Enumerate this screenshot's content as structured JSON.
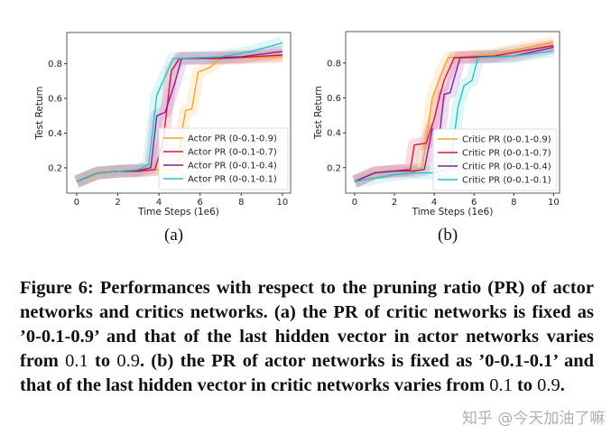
{
  "chart_data": [
    {
      "type": "line",
      "xlabel": "Time Steps (1e6)",
      "ylabel": "Test Return",
      "xlim": [
        -0.48,
        10.4
      ],
      "ylim": [
        0.054,
        0.98
      ],
      "xticks": [
        "0",
        "2",
        "4",
        "6",
        "8",
        "10"
      ],
      "yticks": [
        "0.2",
        "0.4",
        "0.6",
        "0.8"
      ],
      "legend": "bottom-right",
      "grid": false,
      "subfigure_label": "(a)",
      "series": [
        {
          "name": "Actor PR (0-0.1-0.9)",
          "color": "#f5a623",
          "points": [
            [
              0,
              0.12
            ],
            [
              1,
              0.165
            ],
            [
              2,
              0.18
            ],
            [
              3,
              0.185
            ],
            [
              4,
              0.19
            ],
            [
              4.9,
              0.19
            ],
            [
              5.1,
              0.4
            ],
            [
              5.3,
              0.53
            ],
            [
              5.6,
              0.54
            ],
            [
              5.9,
              0.75
            ],
            [
              6.5,
              0.78
            ],
            [
              7,
              0.83
            ],
            [
              10,
              0.84
            ]
          ]
        },
        {
          "name": "Actor PR (0-0.1-0.7)",
          "color": "#d8163a",
          "points": [
            [
              0,
              0.12
            ],
            [
              1,
              0.17
            ],
            [
              2,
              0.18
            ],
            [
              3,
              0.18
            ],
            [
              3.8,
              0.19
            ],
            [
              4.2,
              0.35
            ],
            [
              4.6,
              0.76
            ],
            [
              5,
              0.83
            ],
            [
              7,
              0.83
            ],
            [
              10,
              0.85
            ]
          ]
        },
        {
          "name": "Actor PR (0-0.1-0.4)",
          "color": "#8e1a9e",
          "points": [
            [
              0,
              0.12
            ],
            [
              1,
              0.17
            ],
            [
              2,
              0.18
            ],
            [
              3,
              0.185
            ],
            [
              3.6,
              0.2
            ],
            [
              3.9,
              0.5
            ],
            [
              4.3,
              0.52
            ],
            [
              4.8,
              0.7
            ],
            [
              5.1,
              0.83
            ],
            [
              8,
              0.84
            ],
            [
              10,
              0.87
            ]
          ]
        },
        {
          "name": "Actor PR (0-0.1-0.1)",
          "color": "#27c4c4",
          "points": [
            [
              0,
              0.12
            ],
            [
              1,
              0.17
            ],
            [
              2,
              0.18
            ],
            [
              3,
              0.19
            ],
            [
              3.5,
              0.22
            ],
            [
              3.9,
              0.62
            ],
            [
              4.2,
              0.7
            ],
            [
              4.7,
              0.83
            ],
            [
              7,
              0.84
            ],
            [
              8.5,
              0.87
            ],
            [
              10,
              0.92
            ]
          ]
        }
      ]
    },
    {
      "type": "line",
      "xlabel": "Time Steps (1e6)",
      "ylabel": "Test Return",
      "xlim": [
        -0.45,
        10.3
      ],
      "ylim": [
        0.054,
        0.98
      ],
      "xticks": [
        "0",
        "2",
        "4",
        "6",
        "8",
        "10"
      ],
      "yticks": [
        "0.2",
        "0.4",
        "0.6",
        "0.8"
      ],
      "legend": "bottom-right",
      "grid": false,
      "subfigure_label": "(b)",
      "series": [
        {
          "name": "Critic PR (0-0.1-0.9)",
          "color": "#f5a623",
          "points": [
            [
              0,
              0.12
            ],
            [
              1,
              0.17
            ],
            [
              2,
              0.18
            ],
            [
              3,
              0.19
            ],
            [
              3.4,
              0.2
            ],
            [
              3.9,
              0.6
            ],
            [
              4.4,
              0.75
            ],
            [
              4.7,
              0.83
            ],
            [
              7,
              0.85
            ],
            [
              10,
              0.92
            ]
          ]
        },
        {
          "name": "Critic PR (0-0.1-0.7)",
          "color": "#d8163a",
          "points": [
            [
              0,
              0.12
            ],
            [
              1,
              0.17
            ],
            [
              2,
              0.18
            ],
            [
              2.8,
              0.19
            ],
            [
              3.0,
              0.33
            ],
            [
              3.6,
              0.34
            ],
            [
              4,
              0.48
            ],
            [
              4.3,
              0.62
            ],
            [
              4.5,
              0.7
            ],
            [
              5,
              0.83
            ],
            [
              7,
              0.84
            ],
            [
              10,
              0.9
            ]
          ]
        },
        {
          "name": "Critic PR (0-0.1-0.4)",
          "color": "#8e1a9e",
          "points": [
            [
              0,
              0.12
            ],
            [
              1,
              0.17
            ],
            [
              2,
              0.18
            ],
            [
              3,
              0.18
            ],
            [
              3.5,
              0.19
            ],
            [
              3.9,
              0.42
            ],
            [
              4.3,
              0.42
            ],
            [
              4.5,
              0.62
            ],
            [
              4.8,
              0.63
            ],
            [
              5.3,
              0.83
            ],
            [
              8,
              0.84
            ],
            [
              10,
              0.89
            ]
          ]
        },
        {
          "name": "Critic PR (0-0.1-0.1)",
          "color": "#27c4c4",
          "points": [
            [
              0,
              0.12
            ],
            [
              2,
              0.16
            ],
            [
              3,
              0.17
            ],
            [
              4,
              0.17
            ],
            [
              4.8,
              0.2
            ],
            [
              5.2,
              0.55
            ],
            [
              5.5,
              0.67
            ],
            [
              5.9,
              0.7
            ],
            [
              6.2,
              0.83
            ],
            [
              8,
              0.84
            ],
            [
              10,
              0.87
            ]
          ]
        }
      ]
    }
  ],
  "caption": {
    "label": "Figure 6:",
    "t1": " Performances with respect to the pruning ratio (PR) of actor networks and critics networks. (a) the PR of critic networks is fixed as ’0-0.1-0.9’ and that of the last hidden vector in actor networks varies from ",
    "v1": "0.1",
    "t2": " to ",
    "v2": "0.9",
    "t3": ". (b) the PR of actor networks is fixed as ’0-0.1-0.1’ and that of the last hidden vector in critic networks varies from ",
    "v3": "0.1",
    "t4": " to ",
    "v4": "0.9",
    "t5": "."
  },
  "watermark": "知乎 @今天加油了嘛"
}
